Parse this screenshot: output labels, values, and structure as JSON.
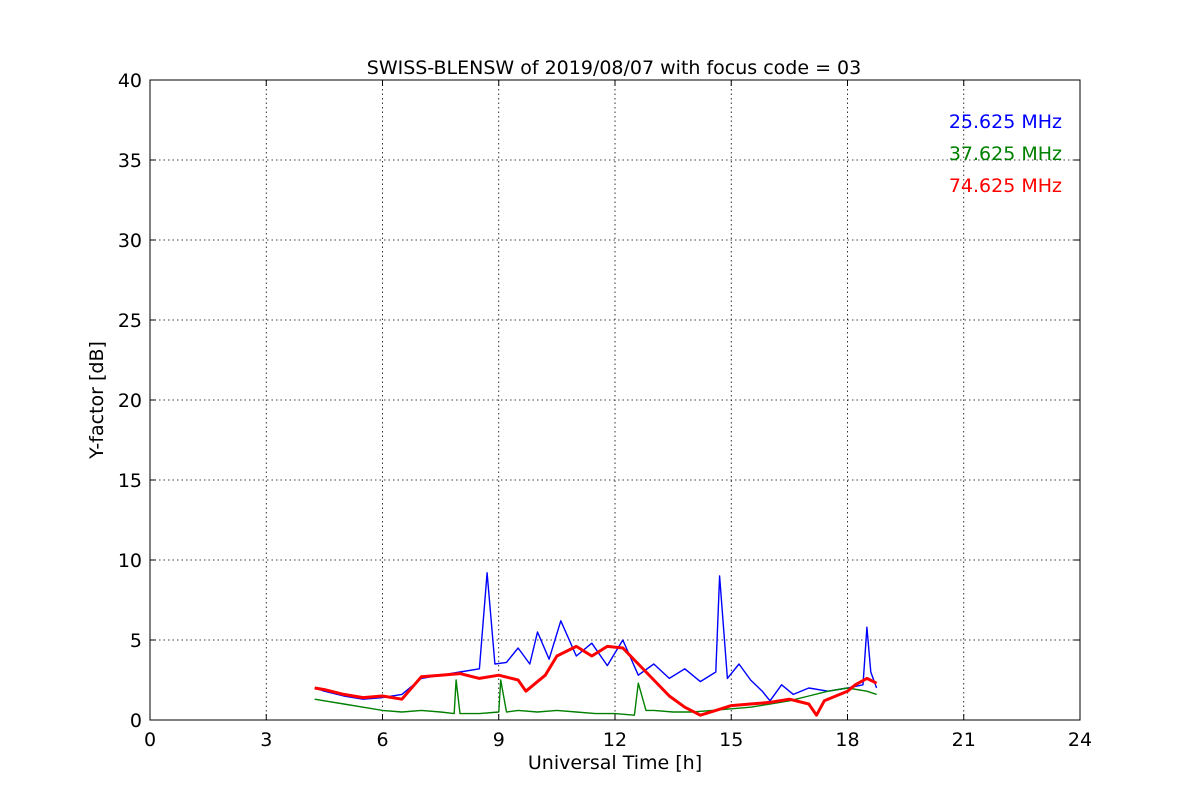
{
  "chart_data": {
    "type": "line",
    "title": "SWISS-BLENSW of 2019/08/07 with focus code = 03",
    "xlabel": "Universal Time [h]",
    "ylabel": "Y-factor [dB]",
    "xlim": [
      0,
      24
    ],
    "ylim": [
      0,
      40
    ],
    "xticks": [
      0,
      3,
      6,
      9,
      12,
      15,
      18,
      21,
      24
    ],
    "yticks": [
      0,
      5,
      10,
      15,
      20,
      25,
      30,
      35,
      40
    ],
    "grid": true,
    "legend_position": "top-right",
    "series": [
      {
        "name": "25.625 MHz",
        "color": "#0000ff",
        "x": [
          4.25,
          4.5,
          5.0,
          5.5,
          6.0,
          6.5,
          7.0,
          7.5,
          8.0,
          8.5,
          8.7,
          8.9,
          9.2,
          9.5,
          9.8,
          10.0,
          10.3,
          10.6,
          11.0,
          11.4,
          11.8,
          12.2,
          12.6,
          13.0,
          13.4,
          13.8,
          14.2,
          14.6,
          14.7,
          14.9,
          15.2,
          15.5,
          15.8,
          16.0,
          16.3,
          16.6,
          17.0,
          17.5,
          18.0,
          18.4,
          18.5,
          18.6,
          18.75
        ],
        "y": [
          2.0,
          1.8,
          1.5,
          1.3,
          1.4,
          1.6,
          2.6,
          2.8,
          3.0,
          3.2,
          9.2,
          3.5,
          3.6,
          4.5,
          3.5,
          5.5,
          3.8,
          6.2,
          4.0,
          4.8,
          3.4,
          5.0,
          2.8,
          3.5,
          2.6,
          3.2,
          2.4,
          3.0,
          9.0,
          2.6,
          3.5,
          2.5,
          1.8,
          1.2,
          2.2,
          1.6,
          2.0,
          1.8,
          2.0,
          2.2,
          5.8,
          3.0,
          2.0
        ]
      },
      {
        "name": "37.625 MHz",
        "color": "#008000",
        "x": [
          4.25,
          4.5,
          5.0,
          5.5,
          6.0,
          6.5,
          7.0,
          7.5,
          7.85,
          7.9,
          8.0,
          8.5,
          9.0,
          9.05,
          9.2,
          9.5,
          10.0,
          10.5,
          11.0,
          11.5,
          12.0,
          12.5,
          12.6,
          12.8,
          13.0,
          13.5,
          14.0,
          14.5,
          15.0,
          15.5,
          16.0,
          16.5,
          17.0,
          17.5,
          18.0,
          18.5,
          18.75
        ],
        "y": [
          1.3,
          1.2,
          1.0,
          0.8,
          0.6,
          0.5,
          0.6,
          0.5,
          0.4,
          2.5,
          0.4,
          0.4,
          0.5,
          2.5,
          0.5,
          0.6,
          0.5,
          0.6,
          0.5,
          0.4,
          0.4,
          0.3,
          2.3,
          0.6,
          0.6,
          0.5,
          0.5,
          0.6,
          0.7,
          0.8,
          1.0,
          1.2,
          1.5,
          1.8,
          2.0,
          1.8,
          1.6
        ]
      },
      {
        "name": "74.625 MHz",
        "color": "#ff0000",
        "x": [
          4.25,
          4.5,
          5.0,
          5.5,
          6.0,
          6.5,
          7.0,
          7.5,
          8.0,
          8.5,
          9.0,
          9.5,
          9.7,
          9.9,
          10.2,
          10.5,
          11.0,
          11.4,
          11.8,
          12.2,
          12.6,
          13.0,
          13.4,
          13.8,
          14.2,
          14.6,
          15.0,
          15.5,
          16.0,
          16.5,
          17.0,
          17.2,
          17.4,
          17.8,
          18.0,
          18.2,
          18.5,
          18.75
        ],
        "y": [
          2.0,
          1.9,
          1.6,
          1.4,
          1.5,
          1.3,
          2.7,
          2.8,
          2.9,
          2.6,
          2.8,
          2.5,
          1.8,
          2.2,
          2.8,
          4.0,
          4.6,
          4.0,
          4.6,
          4.5,
          3.5,
          2.5,
          1.5,
          0.8,
          0.3,
          0.6,
          0.9,
          1.0,
          1.1,
          1.3,
          1.0,
          0.3,
          1.2,
          1.6,
          1.8,
          2.2,
          2.6,
          2.3
        ]
      }
    ]
  }
}
